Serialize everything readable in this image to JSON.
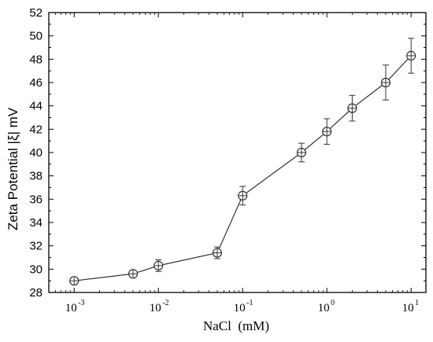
{
  "chart_data": {
    "type": "scatter",
    "xlabel": "NaCl  (mM)",
    "ylabel": "Zeta Potential |ξ| mV",
    "xscale": "log",
    "xlim": [
      0.0005,
      15
    ],
    "ylim": [
      28,
      52
    ],
    "yticks": [
      28,
      30,
      32,
      34,
      36,
      38,
      40,
      42,
      44,
      46,
      48,
      50,
      52
    ],
    "xticks": [
      {
        "base": "10",
        "exp": "-3",
        "value": 0.001
      },
      {
        "base": "10",
        "exp": "-2",
        "value": 0.01
      },
      {
        "base": "10",
        "exp": "-1",
        "value": 0.1
      },
      {
        "base": "10",
        "exp": "0",
        "value": 1
      },
      {
        "base": "10",
        "exp": "1",
        "value": 10
      }
    ],
    "series": [
      {
        "x": [
          0.001,
          0.005,
          0.01,
          0.05,
          0.1,
          0.5,
          1,
          2,
          5,
          10
        ],
        "y": [
          29.0,
          29.6,
          30.3,
          31.4,
          36.3,
          40.0,
          41.8,
          43.8,
          46.0,
          48.3
        ],
        "yerr": [
          0.3,
          0.3,
          0.5,
          0.5,
          0.8,
          0.8,
          1.1,
          1.1,
          1.5,
          1.5
        ]
      }
    ],
    "marker": "circle-plus",
    "grid": false,
    "legend": "none",
    "color": "#333333"
  }
}
